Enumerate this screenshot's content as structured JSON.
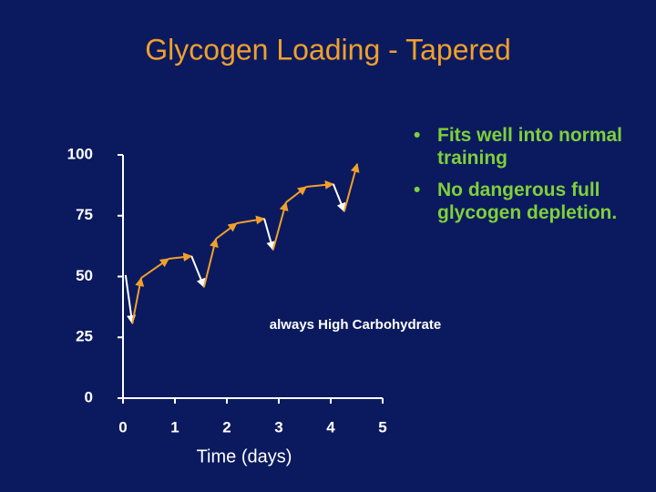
{
  "chart_data": {
    "type": "line",
    "title": "Glycogen Loading - Tapered",
    "x_label": "Time (days)",
    "annotation": "always High Carbohydrate",
    "bullets": [
      "Fits well into normal training",
      "No dangerous full glycogen depletion."
    ],
    "x": [
      0.05,
      0.18,
      0.35,
      0.88,
      1.32,
      1.56,
      1.79,
      2.19,
      2.72,
      2.89,
      3.14,
      3.53,
      4.05,
      4.26,
      4.51
    ],
    "values": [
      50.6,
      30.7,
      49.4,
      57.3,
      58.4,
      45.7,
      65.5,
      71.9,
      73.8,
      61.0,
      80.5,
      86.9,
      88.0,
      76.8,
      96.3
    ],
    "rise_color": "#f0a02c",
    "fall_color": "#ffffff",
    "xlim": [
      0,
      5
    ],
    "xticks": [
      0,
      1,
      2,
      3,
      4,
      5
    ],
    "ylim": [
      0,
      100
    ],
    "yticks": [
      0,
      25,
      50,
      75,
      100
    ]
  }
}
